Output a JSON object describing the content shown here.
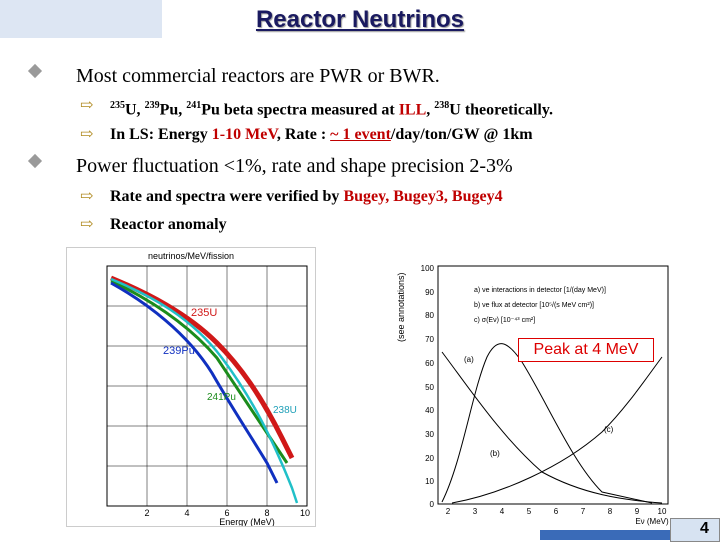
{
  "title": "Reactor Neutrinos",
  "bullets": [
    {
      "text": "Most commercial reactors are PWR or BWR."
    },
    {
      "text": "Power fluctuation <1%, rate and shape precision 2-3%"
    }
  ],
  "sub1": {
    "iso1": "235",
    "iso1_el": "U, ",
    "iso2": "239",
    "iso2_el": "Pu, ",
    "iso3": "241",
    "iso3_el": "Pu beta spectra measured at ",
    "ill": "ILL",
    "rest_a": ", ",
    "iso4": "238",
    "iso4_el": "U theoretically."
  },
  "sub2": {
    "pre": "In LS: Energy ",
    "energy": "1-10 MeV",
    "mid": ", Rate : ",
    "rate": "~ 1 event",
    "post": "/day/ton/GW @ 1km"
  },
  "sub3": {
    "pre": "Rate and spectra were verified by ",
    "bugey": "Bugey, Bugey3, Bugey4"
  },
  "sub4": {
    "text": "Reactor anomaly"
  },
  "left_plot": {
    "ylabel": "neutrinos/MeV/fission",
    "xlabel": "Energy (MeV)",
    "xticks": [
      "2",
      "4",
      "6",
      "8",
      "10"
    ],
    "labels": {
      "u235": "235U",
      "pu239": "239Pu",
      "pu241": "241Pu",
      "u238": "238U"
    }
  },
  "right_plot": {
    "ylabel": "(see annotations)",
    "xlabel": "Eν (MeV)",
    "yticks": [
      "100",
      "90",
      "80",
      "70",
      "60",
      "50",
      "40",
      "30",
      "20",
      "10",
      "0"
    ],
    "xticks": [
      "2",
      "3",
      "4",
      "5",
      "6",
      "7",
      "8",
      "9",
      "10"
    ],
    "legend": [
      "a) νe interactions in detector [1/(day MeV)]",
      "b) νe flux at detector [10⁵/(s MeV cm²)]",
      "c) σ(Eν) [10⁻⁴³ cm²]"
    ],
    "curve_labels": [
      "(a)",
      "(b)",
      "(c)"
    ],
    "peak_note": "Peak at 4 MeV"
  },
  "page_number": "4",
  "colors": {
    "title": "#1a1a60",
    "accent_red": "#c00000",
    "arrow": "#b08a20"
  }
}
